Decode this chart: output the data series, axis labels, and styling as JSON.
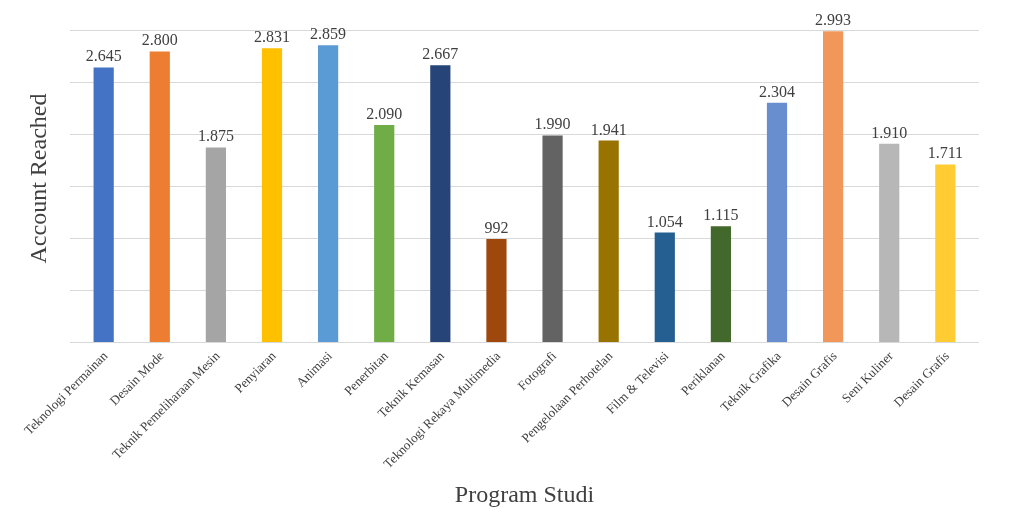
{
  "chart_data": {
    "type": "bar",
    "xlabel": "Program Studi",
    "ylabel": "Account Reached",
    "categories": [
      "Teknologi Permainan",
      "Desain Mode",
      "Teknik Pemeliharaan Mesin",
      "Penyiaran",
      "Animasi",
      "Penerbitan",
      "Teknik Kemasan",
      "Teknologi Rekaya Multimedia",
      "Fotografi",
      "Pengelolaan Perhotelan",
      "Film & Televisi",
      "Periklanan",
      "Teknik Grafika",
      "Desain Grafis",
      "Seni Kuliner",
      "Desain Grafis"
    ],
    "values": [
      2645,
      2800,
      1875,
      2831,
      2859,
      2090,
      2667,
      992,
      1990,
      1941,
      1054,
      1115,
      2304,
      2993,
      1910,
      1711
    ],
    "value_labels": [
      "2.645",
      "2.800",
      "1.875",
      "2.831",
      "2.859",
      "2.090",
      "2.667",
      "992",
      "1.990",
      "1.941",
      "1.054",
      "1.115",
      "2.304",
      "2.993",
      "1.910",
      "1.711"
    ],
    "colors": [
      "#4472c4",
      "#ed7d31",
      "#a5a5a5",
      "#ffc000",
      "#5b9bd5",
      "#70ad47",
      "#264478",
      "#9e480e",
      "#636363",
      "#997300",
      "#255e91",
      "#43682b",
      "#698ed0",
      "#f1975a",
      "#b7b7b7",
      "#ffcd33"
    ],
    "tick_labels": "x",
    "grid": "y"
  }
}
